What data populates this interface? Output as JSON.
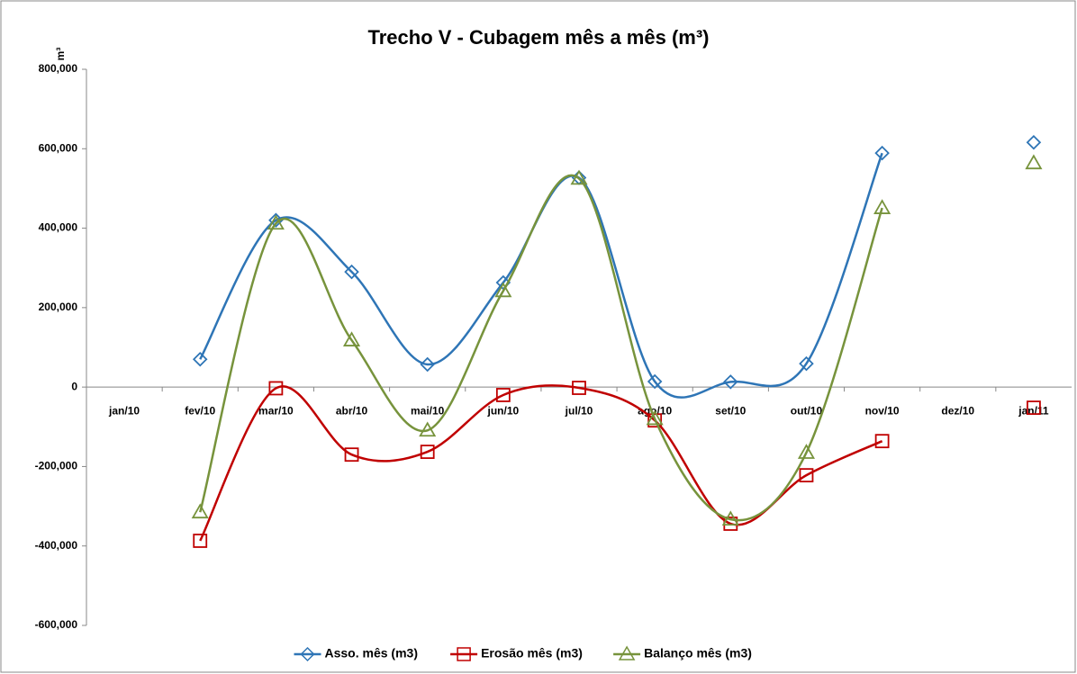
{
  "chart_data": {
    "type": "line",
    "title": "Trecho V - Cubagem mês a mês (m³)",
    "y_label": "m³",
    "categories": [
      "jan/10",
      "fev/10",
      "mar/10",
      "abr/10",
      "mai/10",
      "jun/10",
      "jul/10",
      "ago/10",
      "set/10",
      "out/10",
      "nov/10",
      "dez/10",
      "jan/11"
    ],
    "series": [
      {
        "name": "Asso. mês (m3)",
        "color": "#2e75b6",
        "marker": "diamond",
        "values": [
          null,
          70000,
          420000,
          290000,
          57000,
          263000,
          527000,
          14000,
          13000,
          59000,
          589000,
          null,
          616000
        ]
      },
      {
        "name": "Erosão mês (m3)",
        "color": "#c00000",
        "marker": "square",
        "values": [
          null,
          -387000,
          -3000,
          -170000,
          -163000,
          -20000,
          -2000,
          -84000,
          -344000,
          -222000,
          -136000,
          null,
          -52000
        ]
      },
      {
        "name": "Balanço mês (m3)",
        "color": "#77933c",
        "marker": "triangle",
        "values": [
          null,
          -315000,
          412000,
          118000,
          -109000,
          242000,
          525000,
          -80000,
          -333000,
          -165000,
          451000,
          null,
          564000
        ]
      }
    ],
    "ylim": [
      -600000,
      800000
    ],
    "yticks": [
      {
        "value": -600000,
        "label": "-600,000"
      },
      {
        "value": -400000,
        "label": "-400,000"
      },
      {
        "value": -200000,
        "label": "-200,000"
      },
      0,
      {
        "value": 200000,
        "label": "200,000"
      },
      {
        "value": 400000,
        "label": "400,000"
      },
      {
        "value": 600000,
        "label": "600,000"
      },
      {
        "value": 800000,
        "label": "800,000"
      }
    ],
    "smooth": true,
    "grid": false,
    "legend": "bottom"
  }
}
